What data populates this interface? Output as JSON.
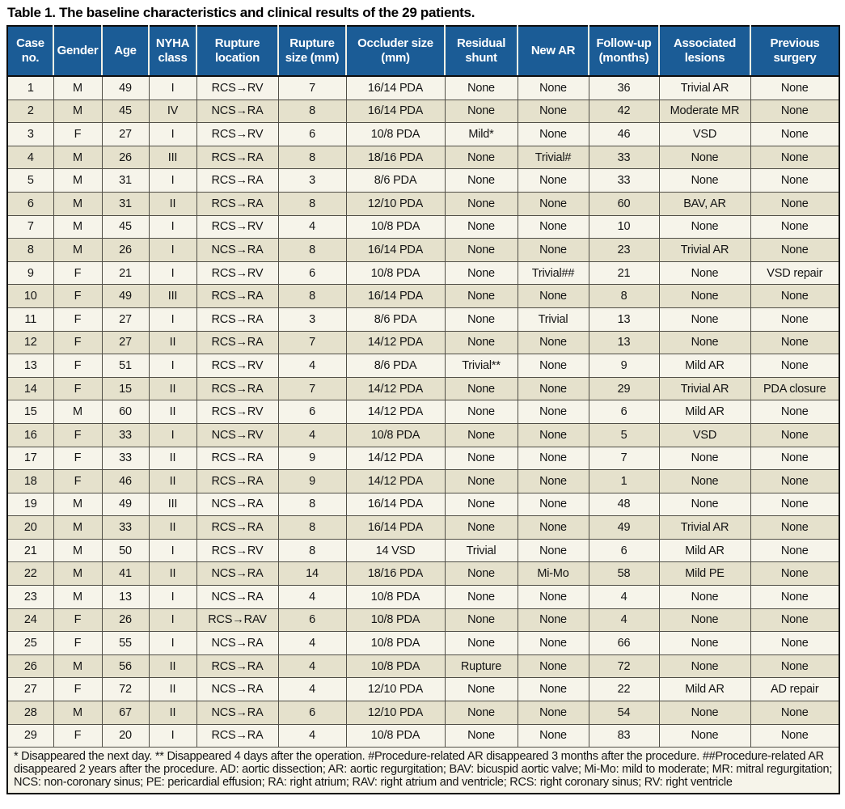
{
  "title": "Table 1. The baseline characteristics and clinical results of the 29 patients.",
  "colors": {
    "header_bg": "#1b5c96",
    "header_text": "#ffffff",
    "row_light": "#f6f4ea",
    "row_dark": "#e5e1cc",
    "border": "#514f47",
    "outer_border": "#0d0d0d"
  },
  "columns": [
    "Case no.",
    "Gender",
    "Age",
    "NYHA class",
    "Rupture location",
    "Rupture size (mm)",
    "Occluder size (mm)",
    "Residual shunt",
    "New AR",
    "Follow-up (months)",
    "Associated lesions",
    "Previous surgery"
  ],
  "rows": [
    [
      "1",
      "M",
      "49",
      "I",
      "RCS→RV",
      "7",
      "16/14 PDA",
      "None",
      "None",
      "36",
      "Trivial AR",
      "None"
    ],
    [
      "2",
      "M",
      "45",
      "IV",
      "NCS→RA",
      "8",
      "16/14 PDA",
      "None",
      "None",
      "42",
      "Moderate MR",
      "None"
    ],
    [
      "3",
      "F",
      "27",
      "I",
      "RCS→RV",
      "6",
      "10/8 PDA",
      "Mild*",
      "None",
      "46",
      "VSD",
      "None"
    ],
    [
      "4",
      "M",
      "26",
      "III",
      "RCS→RA",
      "8",
      "18/16 PDA",
      "None",
      "Trivial#",
      "33",
      "None",
      "None"
    ],
    [
      "5",
      "M",
      "31",
      "I",
      "RCS→RA",
      "3",
      "8/6 PDA",
      "None",
      "None",
      "33",
      "None",
      "None"
    ],
    [
      "6",
      "M",
      "31",
      "II",
      "RCS→RA",
      "8",
      "12/10 PDA",
      "None",
      "None",
      "60",
      "BAV, AR",
      "None"
    ],
    [
      "7",
      "M",
      "45",
      "I",
      "RCS→RV",
      "4",
      "10/8 PDA",
      "None",
      "None",
      "10",
      "None",
      "None"
    ],
    [
      "8",
      "M",
      "26",
      "I",
      "NCS→RA",
      "8",
      "16/14 PDA",
      "None",
      "None",
      "23",
      "Trivial AR",
      "None"
    ],
    [
      "9",
      "F",
      "21",
      "I",
      "RCS→RV",
      "6",
      "10/8 PDA",
      "None",
      "Trivial##",
      "21",
      "None",
      "VSD repair"
    ],
    [
      "10",
      "F",
      "49",
      "III",
      "RCS→RA",
      "8",
      "16/14 PDA",
      "None",
      "None",
      "8",
      "None",
      "None"
    ],
    [
      "11",
      "F",
      "27",
      "I",
      "RCS→RA",
      "3",
      "8/6 PDA",
      "None",
      "Trivial",
      "13",
      "None",
      "None"
    ],
    [
      "12",
      "F",
      "27",
      "II",
      "RCS→RA",
      "7",
      "14/12 PDA",
      "None",
      "None",
      "13",
      "None",
      "None"
    ],
    [
      "13",
      "F",
      "51",
      "I",
      "RCS→RV",
      "4",
      "8/6 PDA",
      "Trivial**",
      "None",
      "9",
      "Mild AR",
      "None"
    ],
    [
      "14",
      "F",
      "15",
      "II",
      "RCS→RA",
      "7",
      "14/12 PDA",
      "None",
      "None",
      "29",
      "Trivial AR",
      "PDA closure"
    ],
    [
      "15",
      "M",
      "60",
      "II",
      "RCS→RV",
      "6",
      "14/12 PDA",
      "None",
      "None",
      "6",
      "Mild AR",
      "None"
    ],
    [
      "16",
      "F",
      "33",
      "I",
      "NCS→RV",
      "4",
      "10/8 PDA",
      "None",
      "None",
      "5",
      "VSD",
      "None"
    ],
    [
      "17",
      "F",
      "33",
      "II",
      "RCS→RA",
      "9",
      "14/12 PDA",
      "None",
      "None",
      "7",
      "None",
      "None"
    ],
    [
      "18",
      "F",
      "46",
      "II",
      "RCS→RA",
      "9",
      "14/12 PDA",
      "None",
      "None",
      "1",
      "None",
      "None"
    ],
    [
      "19",
      "M",
      "49",
      "III",
      "NCS→RA",
      "8",
      "16/14 PDA",
      "None",
      "None",
      "48",
      "None",
      "None"
    ],
    [
      "20",
      "M",
      "33",
      "II",
      "RCS→RA",
      "8",
      "16/14 PDA",
      "None",
      "None",
      "49",
      "Trivial AR",
      "None"
    ],
    [
      "21",
      "M",
      "50",
      "I",
      "RCS→RV",
      "8",
      "14 VSD",
      "Trivial",
      "None",
      "6",
      "Mild AR",
      "None"
    ],
    [
      "22",
      "M",
      "41",
      "II",
      "NCS→RA",
      "14",
      "18/16 PDA",
      "None",
      "Mi-Mo",
      "58",
      "Mild PE",
      "None"
    ],
    [
      "23",
      "M",
      "13",
      "I",
      "NCS→RA",
      "4",
      "10/8 PDA",
      "None",
      "None",
      "4",
      "None",
      "None"
    ],
    [
      "24",
      "F",
      "26",
      "I",
      "RCS→RAV",
      "6",
      "10/8 PDA",
      "None",
      "None",
      "4",
      "None",
      "None"
    ],
    [
      "25",
      "F",
      "55",
      "I",
      "NCS→RA",
      "4",
      "10/8 PDA",
      "None",
      "None",
      "66",
      "None",
      "None"
    ],
    [
      "26",
      "M",
      "56",
      "II",
      "RCS→RA",
      "4",
      "10/8 PDA",
      "Rupture",
      "None",
      "72",
      "None",
      "None"
    ],
    [
      "27",
      "F",
      "72",
      "II",
      "NCS→RA",
      "4",
      "12/10 PDA",
      "None",
      "None",
      "22",
      "Mild AR",
      "AD repair"
    ],
    [
      "28",
      "M",
      "67",
      "II",
      "NCS→RA",
      "6",
      "12/10 PDA",
      "None",
      "None",
      "54",
      "None",
      "None"
    ],
    [
      "29",
      "F",
      "20",
      "I",
      "RCS→RA",
      "4",
      "10/8 PDA",
      "None",
      "None",
      "83",
      "None",
      "None"
    ]
  ],
  "footnote": "* Disappeared the next day. ** Disappeared 4 days after the operation. #Procedure-related AR disappeared 3 months after the procedure. ##Procedure-related AR disappeared 2 years after the procedure. AD: aortic dissection; AR: aortic regurgitation; BAV: bicuspid aortic valve; Mi-Mo: mild to moderate; MR: mitral regurgitation; NCS: non-coronary sinus; PE: pericardial effusion; RA: right atrium; RAV: right atrium and ventricle; RCS: right coronary sinus; RV: right ventricle"
}
